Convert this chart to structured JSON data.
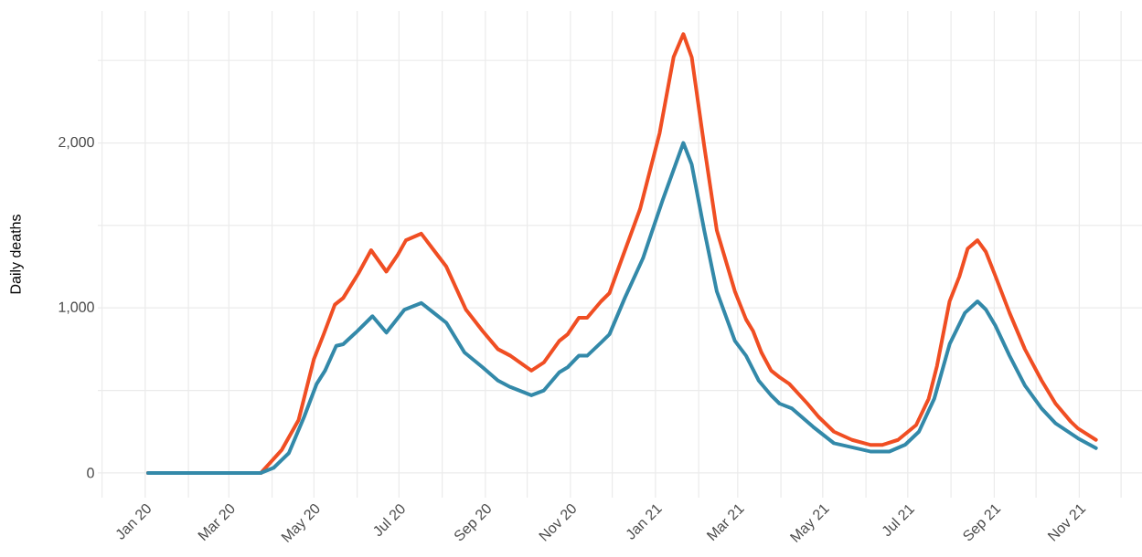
{
  "chart_data": {
    "type": "line",
    "ylabel": "Daily deaths",
    "xlim": [
      "2019-11-28",
      "2021-12-16"
    ],
    "ylim": [
      -150,
      2800
    ],
    "xticks": [
      {
        "value": "2019-12-01",
        "label": null
      },
      {
        "value": "2020-01-01",
        "label": "Jan 20"
      },
      {
        "value": "2020-02-01",
        "label": null
      },
      {
        "value": "2020-03-01",
        "label": "Mar 20"
      },
      {
        "value": "2020-04-01",
        "label": null
      },
      {
        "value": "2020-05-01",
        "label": "May 20"
      },
      {
        "value": "2020-06-01",
        "label": null
      },
      {
        "value": "2020-07-01",
        "label": "Jul 20"
      },
      {
        "value": "2020-08-01",
        "label": null
      },
      {
        "value": "2020-09-01",
        "label": "Sep 20"
      },
      {
        "value": "2020-10-01",
        "label": null
      },
      {
        "value": "2020-11-01",
        "label": "Nov 20"
      },
      {
        "value": "2020-12-01",
        "label": null
      },
      {
        "value": "2021-01-01",
        "label": "Jan 21"
      },
      {
        "value": "2021-02-01",
        "label": null
      },
      {
        "value": "2021-03-01",
        "label": "Mar 21"
      },
      {
        "value": "2021-04-01",
        "label": null
      },
      {
        "value": "2021-05-01",
        "label": "May 21"
      },
      {
        "value": "2021-06-01",
        "label": null
      },
      {
        "value": "2021-07-01",
        "label": "Jul 21"
      },
      {
        "value": "2021-08-01",
        "label": null
      },
      {
        "value": "2021-09-01",
        "label": "Sep 21"
      },
      {
        "value": "2021-10-01",
        "label": null
      },
      {
        "value": "2021-11-01",
        "label": "Nov 21"
      },
      {
        "value": "2021-12-01",
        "label": null
      }
    ],
    "yticks": [
      0,
      {
        "value": 500,
        "label": null
      },
      {
        "value": 1000,
        "label": "1,000"
      },
      {
        "value": 1500,
        "label": null
      },
      {
        "value": 2000,
        "label": "2,000"
      },
      {
        "value": 2500,
        "label": null
      }
    ],
    "grid": true,
    "series": [
      {
        "color": "#f04e23",
        "x": [
          "2020-01-03",
          "2020-03-24",
          "2020-04-08",
          "2020-04-20",
          "2020-05-01",
          "2020-05-08",
          "2020-05-16",
          "2020-05-22",
          "2020-06-02",
          "2020-06-11",
          "2020-06-22",
          "2020-06-30",
          "2020-07-06",
          "2020-07-17",
          "2020-07-26",
          "2020-08-04",
          "2020-08-18",
          "2020-08-30",
          "2020-09-10",
          "2020-09-19",
          "2020-10-04",
          "2020-10-13",
          "2020-10-24",
          "2020-10-30",
          "2020-11-07",
          "2020-11-13",
          "2020-11-23",
          "2020-11-29",
          "2020-12-08",
          "2020-12-21",
          "2021-01-04",
          "2021-01-14",
          "2021-01-21",
          "2021-01-27",
          "2021-02-05",
          "2021-02-14",
          "2021-02-27",
          "2021-03-07",
          "2021-03-12",
          "2021-03-18",
          "2021-03-25",
          "2021-03-31",
          "2021-04-07",
          "2021-04-20",
          "2021-04-28",
          "2021-05-09",
          "2021-05-22",
          "2021-06-04",
          "2021-06-13",
          "2021-06-24",
          "2021-07-07",
          "2021-07-16",
          "2021-07-22",
          "2021-07-31",
          "2021-08-07",
          "2021-08-13",
          "2021-08-20",
          "2021-08-26",
          "2021-09-02",
          "2021-09-12",
          "2021-09-23",
          "2021-10-05",
          "2021-10-15",
          "2021-10-26",
          "2021-10-31",
          "2021-11-13"
        ],
        "values": [
          0,
          0,
          140,
          320,
          690,
          840,
          1020,
          1060,
          1210,
          1350,
          1220,
          1320,
          1410,
          1450,
          1350,
          1250,
          990,
          860,
          750,
          710,
          620,
          670,
          800,
          840,
          940,
          940,
          1040,
          1090,
          1300,
          1600,
          2060,
          2520,
          2660,
          2520,
          1980,
          1470,
          1100,
          930,
          860,
          730,
          620,
          580,
          540,
          420,
          340,
          250,
          200,
          170,
          170,
          200,
          290,
          450,
          650,
          1040,
          1190,
          1360,
          1410,
          1340,
          1190,
          970,
          750,
          560,
          420,
          310,
          270,
          200
        ]
      },
      {
        "color": "#3389a9",
        "x": [
          "2020-01-03",
          "2020-03-24",
          "2020-04-02",
          "2020-04-13",
          "2020-04-24",
          "2020-05-03",
          "2020-05-09",
          "2020-05-17",
          "2020-05-22",
          "2020-05-31",
          "2020-06-12",
          "2020-06-22",
          "2020-07-05",
          "2020-07-17",
          "2020-07-26",
          "2020-08-04",
          "2020-08-17",
          "2020-08-30",
          "2020-09-10",
          "2020-09-19",
          "2020-10-04",
          "2020-10-13",
          "2020-10-24",
          "2020-10-30",
          "2020-11-07",
          "2020-11-13",
          "2020-11-23",
          "2020-11-29",
          "2020-12-10",
          "2020-12-23",
          "2021-01-06",
          "2021-01-21",
          "2021-01-27",
          "2021-02-05",
          "2021-02-14",
          "2021-02-27",
          "2021-03-07",
          "2021-03-16",
          "2021-03-25",
          "2021-03-31",
          "2021-04-09",
          "2021-04-24",
          "2021-05-09",
          "2021-06-04",
          "2021-06-18",
          "2021-06-29",
          "2021-07-09",
          "2021-07-20",
          "2021-07-31",
          "2021-08-11",
          "2021-08-20",
          "2021-08-26",
          "2021-09-02",
          "2021-09-12",
          "2021-09-23",
          "2021-10-05",
          "2021-10-15",
          "2021-10-31",
          "2021-11-13"
        ],
        "values": [
          0,
          0,
          30,
          120,
          340,
          540,
          620,
          770,
          780,
          850,
          950,
          850,
          990,
          1030,
          970,
          910,
          730,
          640,
          560,
          520,
          470,
          500,
          610,
          640,
          710,
          710,
          790,
          840,
          1060,
          1300,
          1650,
          2000,
          1870,
          1470,
          1100,
          800,
          710,
          560,
          470,
          420,
          390,
          280,
          180,
          130,
          130,
          170,
          250,
          450,
          780,
          970,
          1040,
          990,
          890,
          710,
          530,
          390,
          300,
          210,
          150
        ]
      }
    ]
  }
}
